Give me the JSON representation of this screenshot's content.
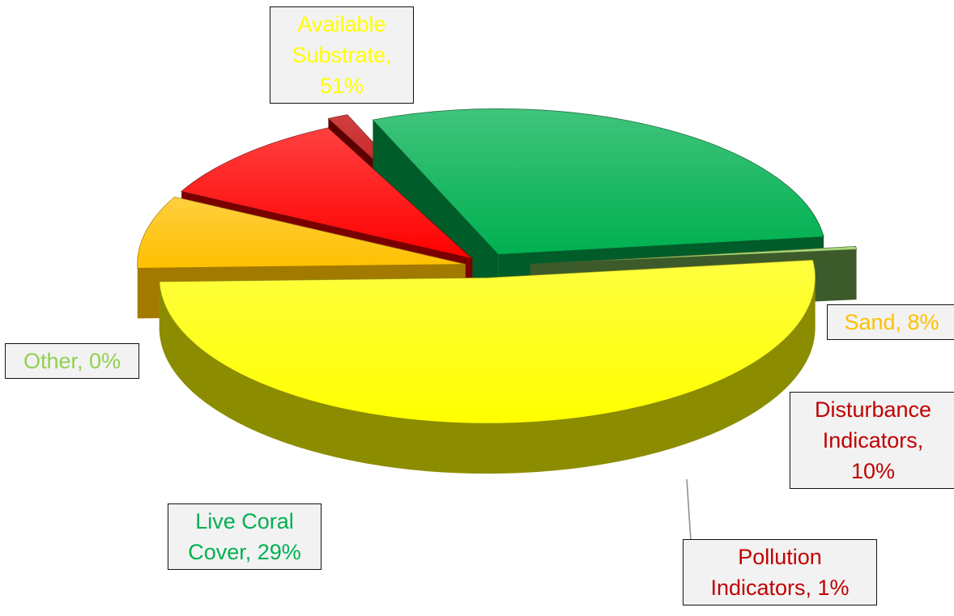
{
  "chart_data": {
    "type": "pie",
    "title": "",
    "slices": [
      {
        "name": "Available Substrate",
        "value": 51,
        "label": "Available\nSubstrate,\n51%",
        "color": "#ffff00",
        "side_color": "#8c8c00"
      },
      {
        "name": "Sand",
        "value": 8,
        "label": "Sand, 8%",
        "color": "#ffc000",
        "side_color": "#a37a00"
      },
      {
        "name": "Disturbance Indicators",
        "value": 10,
        "label": "Disturbance\nIndicators,\n10%",
        "color": "#ff0000",
        "side_color": "#7a0000"
      },
      {
        "name": "Pollution Indicators",
        "value": 1,
        "label": "Pollution\nIndicators, 1%",
        "color": "#c00000",
        "side_color": "#5c0000"
      },
      {
        "name": "Live Coral Cover",
        "value": 29,
        "label": "Live Coral\nCover, 29%",
        "color": "#00b050",
        "side_color": "#005c28"
      },
      {
        "name": "Other",
        "value": 0,
        "label": "Other, 0%",
        "color": "#92d050",
        "side_color": "#3d5a2a"
      }
    ],
    "label_colors": {
      "Available Substrate": "#ffff00",
      "Sand": "#ffc000",
      "Disturbance Indicators": "#c00000",
      "Pollution Indicators": "#c00000",
      "Live Coral Cover": "#00b050",
      "Other": "#92d050"
    },
    "exploded": true,
    "three_d": true,
    "legend": "none"
  }
}
